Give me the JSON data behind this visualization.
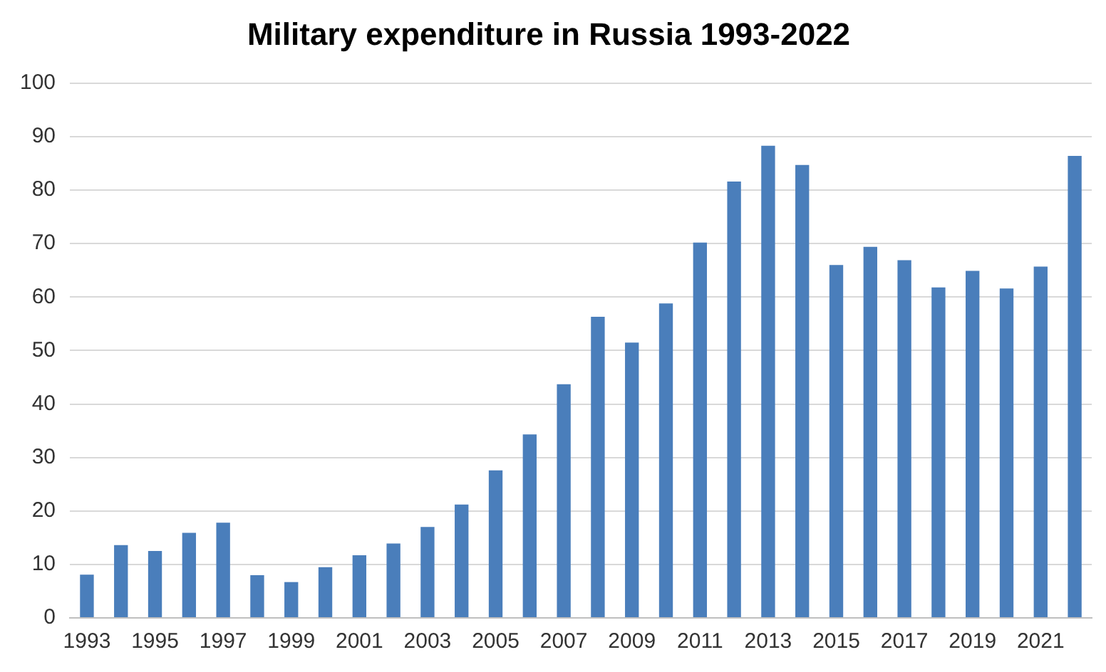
{
  "chart_data": {
    "type": "bar",
    "title": "Military expenditure in Russia 1993-2022",
    "categories": [
      "1993",
      null,
      "1995",
      null,
      "1997",
      null,
      "1999",
      null,
      "2001",
      null,
      "2003",
      null,
      "2005",
      null,
      "2007",
      null,
      "2009",
      null,
      "2011",
      null,
      "2013",
      null,
      "2015",
      null,
      "2017",
      null,
      "2019",
      null,
      "2021",
      null
    ],
    "values": [
      8.1,
      13.6,
      12.5,
      15.9,
      17.8,
      8,
      6.7,
      9.5,
      11.7,
      13.9,
      17,
      21.2,
      27.6,
      34.3,
      43.7,
      56.3,
      51.5,
      58.8,
      70.2,
      81.6,
      88.3,
      84.7,
      66,
      69.4,
      66.9,
      61.8,
      64.9,
      61.6,
      65.7,
      86.4
    ],
    "color": "#4a7ebb",
    "ylim": [
      0,
      100
    ],
    "yticks": [
      0,
      10,
      20,
      30,
      40,
      50,
      60,
      70,
      80,
      90,
      100
    ],
    "grid": "y"
  }
}
